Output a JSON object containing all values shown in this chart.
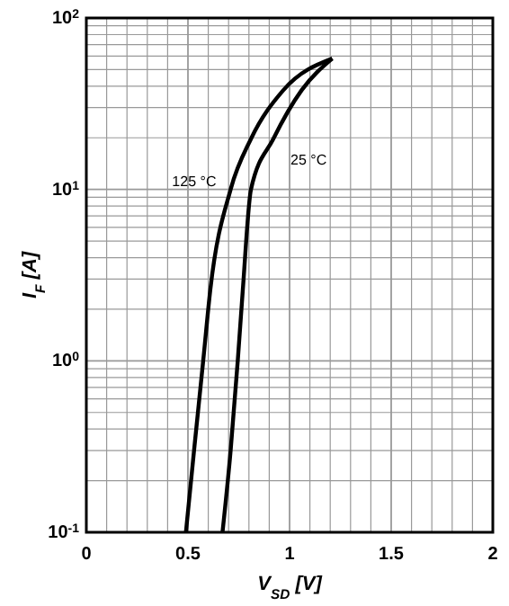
{
  "chart_data": {
    "type": "line",
    "xlabel": "V$_{SD}$ [V]",
    "ylabel": "I$_{F}$ [A]",
    "log": "y",
    "grid": true,
    "marker": "none",
    "line_style": "solid",
    "xlim": [
      0,
      2
    ],
    "ylim": [
      0.1,
      100
    ],
    "xticks": [
      0,
      {
        "value": 0.1,
        "label": null
      },
      {
        "value": 0.2,
        "label": null
      },
      {
        "value": 0.3,
        "label": null
      },
      {
        "value": 0.4,
        "label": null
      },
      0.5,
      {
        "value": 0.6,
        "label": null
      },
      {
        "value": 0.7,
        "label": null
      },
      {
        "value": 0.8,
        "label": null
      },
      {
        "value": 0.9,
        "label": null
      },
      1,
      {
        "value": 1.1,
        "label": null
      },
      {
        "value": 1.2,
        "label": null
      },
      {
        "value": 1.3,
        "label": null
      },
      {
        "value": 1.4,
        "label": null
      },
      1.5,
      {
        "value": 1.6,
        "label": null
      },
      {
        "value": 1.7,
        "label": null
      },
      {
        "value": 1.8,
        "label": null
      },
      {
        "value": 1.9,
        "label": null
      },
      2
    ],
    "yticks": [
      {
        "value": 0.1,
        "label": "10$^{-1}$"
      },
      {
        "value": 0.2,
        "label": null
      },
      {
        "value": 0.3,
        "label": null
      },
      {
        "value": 0.4,
        "label": null
      },
      {
        "value": 0.5,
        "label": null
      },
      {
        "value": 0.6,
        "label": null
      },
      {
        "value": 0.7,
        "label": null
      },
      {
        "value": 0.8,
        "label": null
      },
      {
        "value": 0.9,
        "label": null
      },
      {
        "value": 1,
        "label": "10$^{0}$"
      },
      {
        "value": 2,
        "label": null
      },
      {
        "value": 3,
        "label": null
      },
      {
        "value": 4,
        "label": null
      },
      {
        "value": 5,
        "label": null
      },
      {
        "value": 6,
        "label": null
      },
      {
        "value": 7,
        "label": null
      },
      {
        "value": 8,
        "label": null
      },
      {
        "value": 9,
        "label": null
      },
      {
        "value": 10,
        "label": "10$^{1}$"
      },
      {
        "value": 20,
        "label": null
      },
      {
        "value": 30,
        "label": null
      },
      {
        "value": 40,
        "label": null
      },
      {
        "value": 50,
        "label": null
      },
      {
        "value": 60,
        "label": null
      },
      {
        "value": 70,
        "label": null
      },
      {
        "value": 80,
        "label": null
      },
      {
        "value": 90,
        "label": null
      },
      {
        "value": 100,
        "label": "10$^{2}$"
      }
    ],
    "series": [
      {
        "name": "125 °C",
        "color": "#000000",
        "x": [
          0.49,
          0.53,
          0.575,
          0.61,
          0.71,
          0.81,
          0.97,
          1.21
        ],
        "values": [
          0.1,
          0.3,
          1,
          2.6,
          10,
          19.7,
          38,
          58
        ]
      },
      {
        "name": "25 °C",
        "color": "#000000",
        "x": [
          0.67,
          0.71,
          0.745,
          0.77,
          0.81,
          0.92,
          1.06,
          1.21
        ],
        "values": [
          0.1,
          0.3,
          1,
          2.6,
          10,
          19.7,
          38,
          58
        ]
      }
    ]
  }
}
